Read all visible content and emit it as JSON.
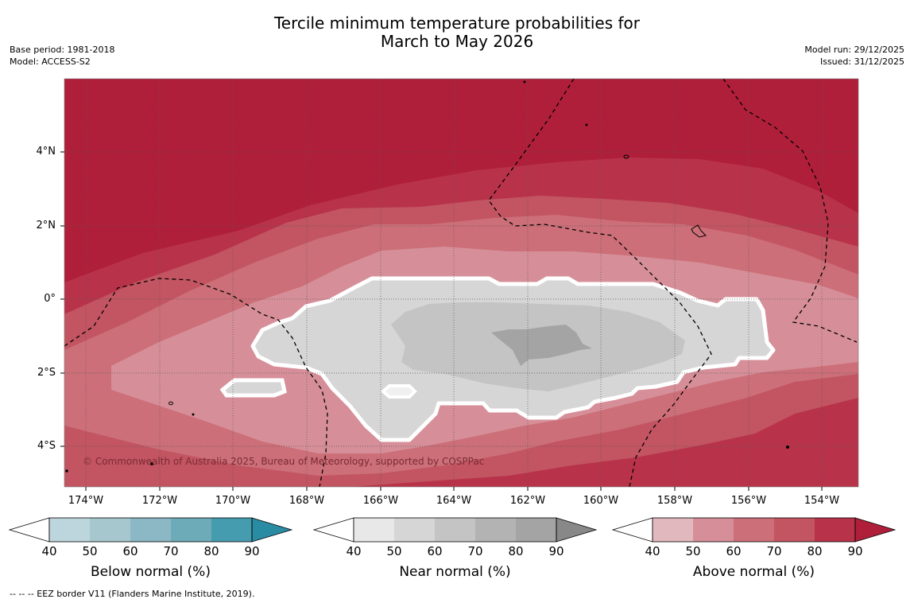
{
  "title": {
    "line1": "Tercile minimum temperature probabilities for",
    "line2": "March to May 2026"
  },
  "meta_left": {
    "base_period": "Base period: 1981-2018",
    "model": "Model: ACCESS-S2"
  },
  "meta_right": {
    "model_run": "Model run: 29/12/2025",
    "issued": "Issued: 31/12/2025"
  },
  "map": {
    "lat_labels": [
      "4°N",
      "2°N",
      "0°",
      "2°S",
      "4°S"
    ],
    "lon_labels": [
      "174°W",
      "172°W",
      "170°W",
      "168°W",
      "166°W",
      "164°W",
      "162°W",
      "160°W",
      "158°W",
      "156°W",
      "154°W"
    ],
    "copyright": "© Commonwealth of Australia 2025, Bureau of Meteorology, supported by COSPPac",
    "colors": {
      "above_40_50": "#e2b8bf",
      "above_50_60": "#d68f99",
      "above_60_70": "#cc6f78",
      "above_70_80": "#c25561",
      "above_80_90": "#b8334a",
      "above_90": "#b01f3a",
      "near_40_50": "#e8e8e8",
      "near_50_60": "#d6d6d6",
      "near_60_70": "#c4c4c4",
      "near_70_80": "#b3b3b3",
      "near_80_90": "#a4a4a4",
      "near_90": "#888888",
      "below_40_50": "#bdd5dc",
      "below_50_60": "#a5c7cd",
      "below_60_70": "#8bb8c4",
      "below_70_80": "#6eabb8",
      "below_80_90": "#469caf",
      "below_90": "#2a8ca3"
    }
  },
  "colorbars": [
    {
      "title": "Below normal (%)",
      "ticks": [
        "40",
        "50",
        "60",
        "70",
        "80",
        "90"
      ],
      "colors": [
        "#bdd5dc",
        "#a5c7cd",
        "#8bb8c4",
        "#6eabb8",
        "#469caf"
      ],
      "extend_color": "#2a8ca3"
    },
    {
      "title": "Near normal (%)",
      "ticks": [
        "40",
        "50",
        "60",
        "70",
        "80",
        "90"
      ],
      "colors": [
        "#e8e8e8",
        "#d6d6d6",
        "#c4c4c4",
        "#b3b3b3",
        "#a4a4a4"
      ],
      "extend_color": "#888888"
    },
    {
      "title": "Above normal (%)",
      "ticks": [
        "40",
        "50",
        "60",
        "70",
        "80",
        "90"
      ],
      "colors": [
        "#e2b8bf",
        "#d68f99",
        "#cc6f78",
        "#c25561",
        "#b8334a"
      ],
      "extend_color": "#b01f3a"
    }
  ],
  "footnote": "--  --  -- EEZ border V11 (Flanders Marine Institute, 2019)."
}
